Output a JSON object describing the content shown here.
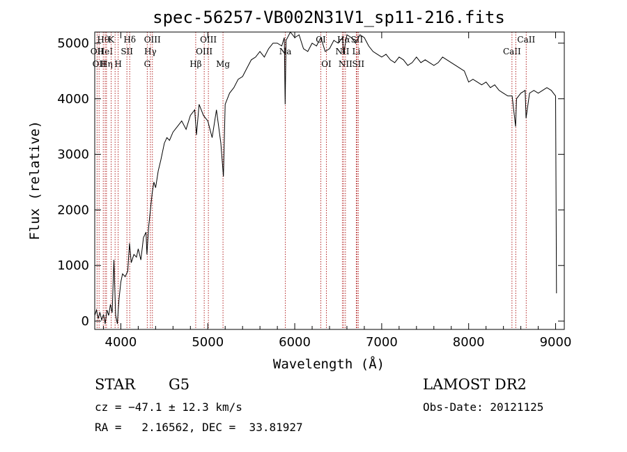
{
  "chart_data": {
    "type": "line",
    "title": "spec-56257-VB002N31V1_sp11-216.fits",
    "xlabel": "Wavelength (Å)",
    "ylabel": "Flux (relative)",
    "xlim": [
      3700,
      9100
    ],
    "ylim": [
      -150,
      5200
    ],
    "xticks": [
      4000,
      5000,
      6000,
      7000,
      8000,
      9000
    ],
    "yticks": [
      0,
      1000,
      2000,
      3000,
      4000,
      5000
    ],
    "grid": false,
    "legend": "none",
    "line_color": "#000000",
    "marker_color": "#b22222",
    "series": [
      {
        "x": [
          3700,
          3720,
          3740,
          3760,
          3780,
          3800,
          3820,
          3840,
          3860,
          3880,
          3900,
          3920,
          3940,
          3960,
          3970,
          3980,
          4000,
          4020,
          4050,
          4080,
          4100,
          4120,
          4150,
          4180,
          4200,
          4230,
          4260,
          4290,
          4300,
          4320,
          4340,
          4360,
          4380,
          4400,
          4430,
          4460,
          4500,
          4530,
          4560,
          4600,
          4650,
          4700,
          4750,
          4800,
          4850,
          4870,
          4900,
          4950,
          5000,
          5050,
          5100,
          5150,
          5180,
          5200,
          5250,
          5300,
          5350,
          5400,
          5450,
          5500,
          5550,
          5600,
          5650,
          5700,
          5750,
          5800,
          5850,
          5880,
          5890,
          5900,
          5950,
          6000,
          6050,
          6100,
          6150,
          6200,
          6250,
          6300,
          6350,
          6400,
          6450,
          6500,
          6550,
          6560,
          6600,
          6650,
          6700,
          6750,
          6800,
          6850,
          6900,
          6950,
          7000,
          7050,
          7100,
          7150,
          7200,
          7250,
          7300,
          7350,
          7400,
          7450,
          7500,
          7550,
          7600,
          7650,
          7700,
          7750,
          7800,
          7850,
          7900,
          7950,
          8000,
          8050,
          8100,
          8150,
          8200,
          8250,
          8300,
          8350,
          8400,
          8450,
          8500,
          8540,
          8550,
          8600,
          8650,
          8660,
          8700,
          8750,
          8800,
          8850,
          8900,
          8950,
          9000,
          9010
        ],
        "y": [
          100,
          200,
          50,
          150,
          20,
          120,
          -50,
          200,
          100,
          300,
          150,
          1100,
          100,
          -50,
          200,
          400,
          700,
          850,
          800,
          900,
          1400,
          1050,
          1200,
          1150,
          1300,
          1100,
          1500,
          1600,
          1200,
          1700,
          2000,
          2300,
          2500,
          2400,
          2700,
          2900,
          3200,
          3300,
          3250,
          3400,
          3500,
          3600,
          3450,
          3700,
          3800,
          3350,
          3900,
          3700,
          3600,
          3300,
          3800,
          3200,
          2600,
          3900,
          4100,
          4200,
          4350,
          4400,
          4550,
          4700,
          4750,
          4850,
          4750,
          4900,
          5000,
          5000,
          4950,
          5100,
          3900,
          5050,
          5200,
          5100,
          5150,
          4900,
          4850,
          5000,
          4950,
          5100,
          4850,
          4900,
          5050,
          5000,
          5100,
          4800,
          5150,
          5100,
          5000,
          5150,
          5100,
          4950,
          4850,
          4800,
          4750,
          4800,
          4700,
          4650,
          4750,
          4700,
          4600,
          4650,
          4750,
          4650,
          4700,
          4650,
          4600,
          4650,
          4750,
          4700,
          4650,
          4600,
          4550,
          4500,
          4300,
          4350,
          4300,
          4250,
          4300,
          4200,
          4250,
          4150,
          4100,
          4050,
          4050,
          3500,
          4000,
          4100,
          4150,
          3650,
          4100,
          4150,
          4100,
          4150,
          4200,
          4150,
          4050,
          500
        ]
      }
    ],
    "spectral_lines": [
      {
        "wave": 3727,
        "label": "OII",
        "row": 2
      },
      {
        "wave": 3750,
        "label": "OII",
        "row": 3
      },
      {
        "wave": 3798,
        "label": "Hθ",
        "row": 1
      },
      {
        "wave": 3820,
        "label": "HeI",
        "row": 2
      },
      {
        "wave": 3835,
        "label": "Hη",
        "row": 3
      },
      {
        "wave": 3889,
        "label": "K",
        "row": 1
      },
      {
        "wave": 3934,
        "label": "",
        "row": 0
      },
      {
        "wave": 3969,
        "label": "H",
        "row": 3
      },
      {
        "wave": 4070,
        "label": "SII",
        "row": 2
      },
      {
        "wave": 4102,
        "label": "Hδ",
        "row": 1
      },
      {
        "wave": 4304,
        "label": "G",
        "row": 3
      },
      {
        "wave": 4340,
        "label": "Hγ",
        "row": 2
      },
      {
        "wave": 4363,
        "label": "OIII",
        "row": 1
      },
      {
        "wave": 4861,
        "label": "Hβ",
        "row": 3
      },
      {
        "wave": 4959,
        "label": "OIII",
        "row": 2
      },
      {
        "wave": 5007,
        "label": "OIII",
        "row": 1
      },
      {
        "wave": 5175,
        "label": "Mg",
        "row": 3
      },
      {
        "wave": 5892,
        "label": "Na",
        "row": 2
      },
      {
        "wave": 6300,
        "label": "OI",
        "row": 1
      },
      {
        "wave": 6364,
        "label": "OI",
        "row": 3
      },
      {
        "wave": 6548,
        "label": "NII",
        "row": 2
      },
      {
        "wave": 6563,
        "label": "Hα",
        "row": 1
      },
      {
        "wave": 6583,
        "label": "NII",
        "row": 3
      },
      {
        "wave": 6708,
        "label": "Li",
        "row": 2
      },
      {
        "wave": 6716,
        "label": "SII",
        "row": 1
      },
      {
        "wave": 6731,
        "label": "SII",
        "row": 3
      },
      {
        "wave": 8498,
        "label": "CaII",
        "row": 2
      },
      {
        "wave": 8542,
        "label": "",
        "row": 0
      },
      {
        "wave": 8662,
        "label": "CaII",
        "row": 1
      }
    ]
  },
  "info": {
    "class_label": "STAR",
    "subclass": "G5",
    "survey": "LAMOST DR2",
    "cz": "cz = −47.1 ± 12.3 km/s",
    "obs_date": "Obs-Date: 20121125",
    "coords": "RA =   2.16562, DEC =  33.81927"
  }
}
